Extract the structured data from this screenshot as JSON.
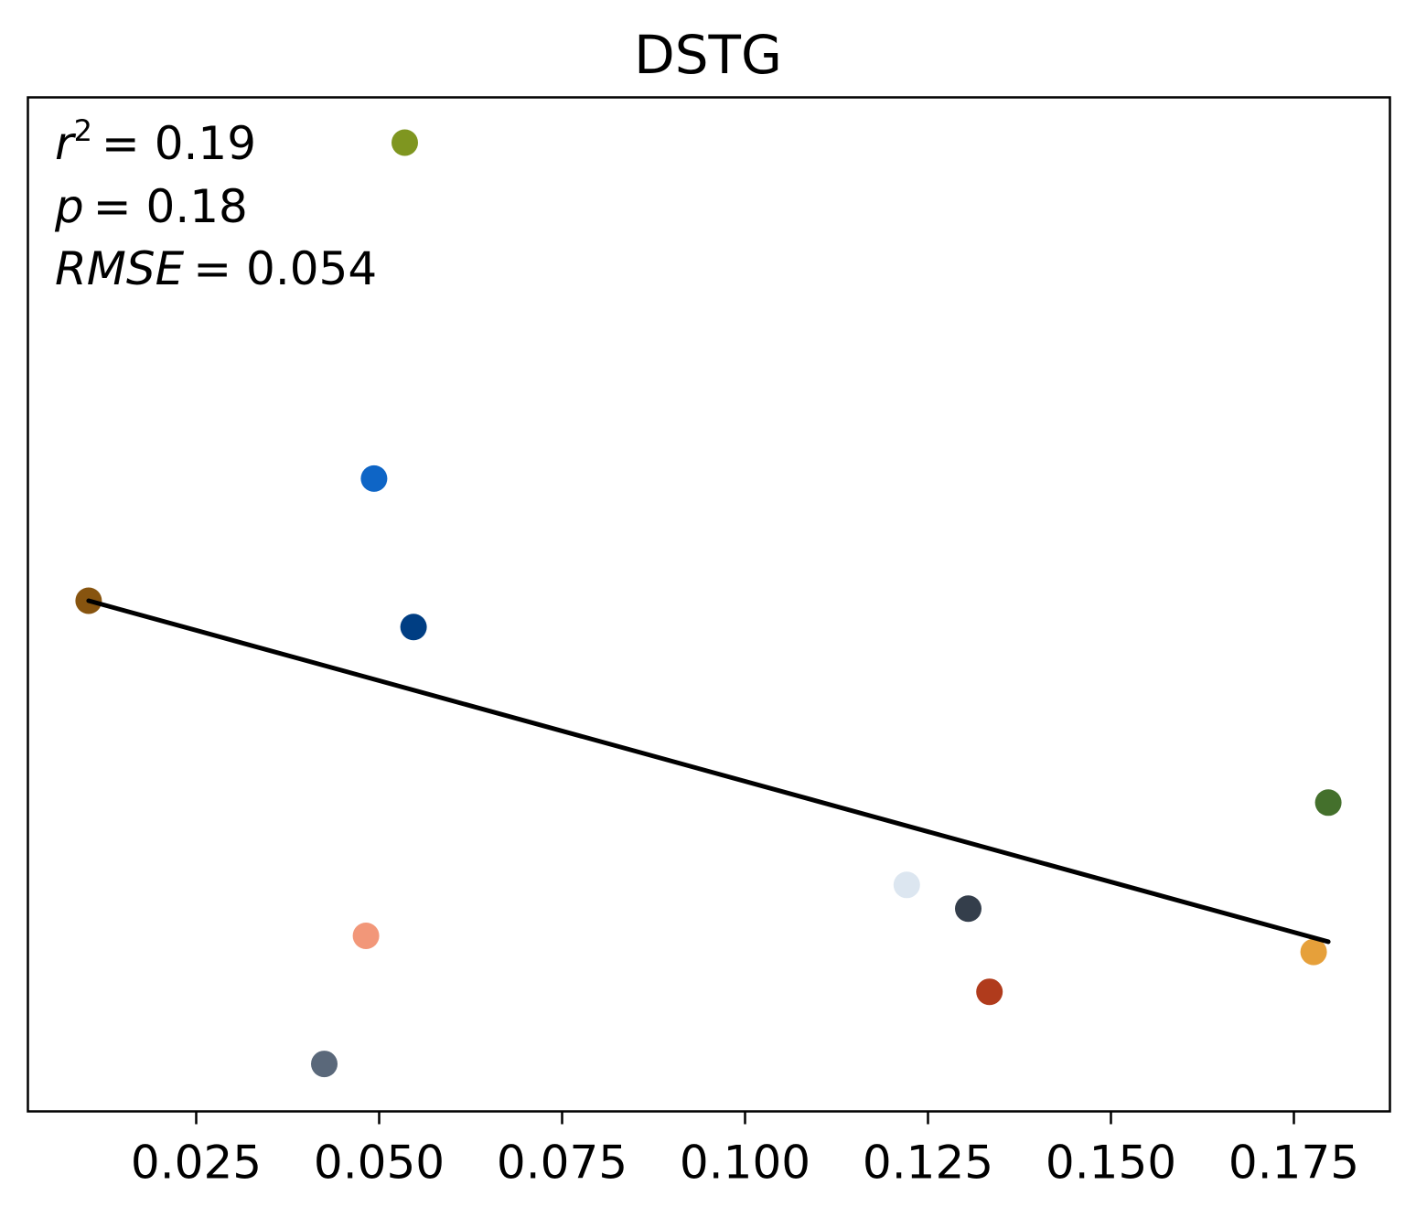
{
  "chart_data": {
    "type": "scatter",
    "title": "DSTG",
    "xlabel": "",
    "ylabel": "",
    "xlim": [
      0.002,
      0.1875
    ],
    "x_ticks": [
      0.025,
      0.05,
      0.075,
      0.1,
      0.125,
      0.15,
      0.175
    ],
    "x_tick_labels": [
      "0.025",
      "0.050",
      "0.075",
      "0.100",
      "0.125",
      "0.150",
      "0.175"
    ],
    "y_ticks_visible": false,
    "grid": false,
    "legend": false,
    "annotations": {
      "r2_label": "r",
      "r2_exp": "2",
      "r2_value": "= 0.19",
      "p_label": "p",
      "p_value": "= 0.18",
      "rmse_label": "RMSE",
      "rmse_value": "= 0.054"
    },
    "points": [
      {
        "x": 0.0535,
        "y": 0.992,
        "color": "#7f9620"
      },
      {
        "x": 0.0493,
        "y": 0.596,
        "color": "#0e65c6"
      },
      {
        "x": 0.0103,
        "y": 0.452,
        "color": "#87540f"
      },
      {
        "x": 0.0547,
        "y": 0.421,
        "color": "#003e83"
      },
      {
        "x": 0.1797,
        "y": 0.214,
        "color": "#44702c"
      },
      {
        "x": 0.1221,
        "y": 0.117,
        "color": "#dce6f0"
      },
      {
        "x": 0.1305,
        "y": 0.089,
        "color": "#343e4b"
      },
      {
        "x": 0.0482,
        "y": 0.057,
        "color": "#f29779"
      },
      {
        "x": 0.1777,
        "y": 0.038,
        "color": "#e6a03a"
      },
      {
        "x": 0.1334,
        "y": -0.009,
        "color": "#b03b1c"
      },
      {
        "x": 0.0425,
        "y": -0.094,
        "color": "#5a687a"
      }
    ],
    "fit_line": {
      "x": [
        0.0103,
        0.1797
      ],
      "y": [
        0.452,
        0.05
      ],
      "color": "#000000"
    }
  }
}
